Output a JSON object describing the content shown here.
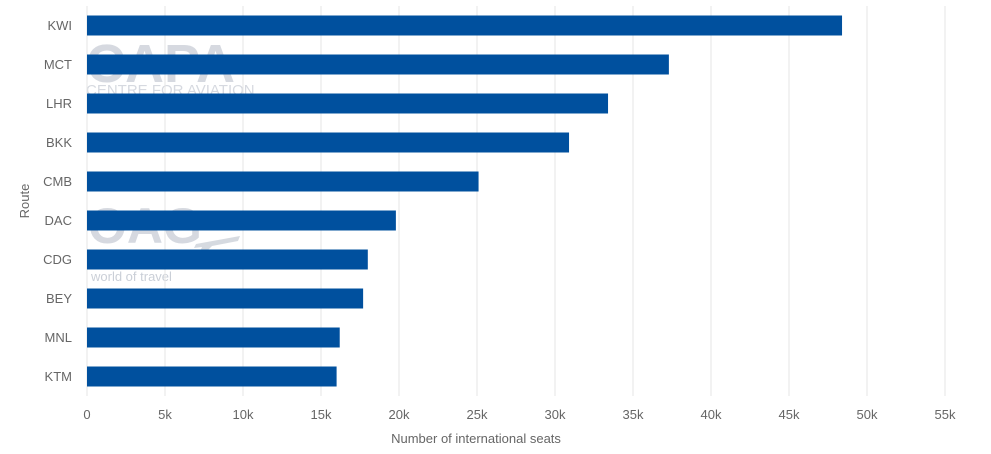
{
  "watermarks": {
    "capa_logo": "CAPA",
    "capa_tagline": "CENTRE FOR AVIATION",
    "oag_logo": "OAG",
    "oag_tagline": "world of travel"
  },
  "chart_data": {
    "type": "bar",
    "orientation": "horizontal",
    "categories": [
      "KWI",
      "MCT",
      "LHR",
      "BKK",
      "CMB",
      "DAC",
      "CDG",
      "BEY",
      "MNL",
      "KTM"
    ],
    "values": [
      48400,
      37300,
      33400,
      30900,
      25100,
      19800,
      18000,
      17700,
      16200,
      16000
    ],
    "xlabel": "Number of international seats",
    "ylabel": "Route",
    "xlim": [
      0,
      55000
    ],
    "xticks": [
      0,
      5000,
      10000,
      15000,
      20000,
      25000,
      30000,
      35000,
      40000,
      45000,
      50000,
      55000
    ],
    "xtick_labels": [
      "0",
      "5k",
      "10k",
      "15k",
      "20k",
      "25k",
      "30k",
      "35k",
      "40k",
      "45k",
      "50k",
      "55k"
    ],
    "grid": true,
    "legend": "none",
    "bar_color": "#00509e",
    "grid_color": "#e6e6e6",
    "watermark_color": "#c5cad3"
  }
}
